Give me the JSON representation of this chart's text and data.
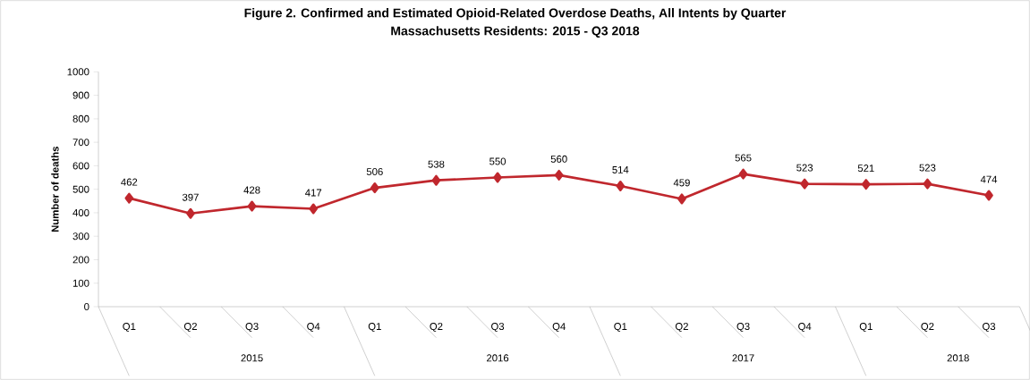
{
  "chart_data": {
    "type": "line",
    "title": "Figure 2. Confirmed and Estimated Opioid-Related Overdose Deaths, All Intents by Quarter",
    "subtitle": "Massachusetts Residents: 2015 - Q3 2018",
    "ylabel": "Number of deaths",
    "categories": [
      "Q1",
      "Q2",
      "Q3",
      "Q4",
      "Q1",
      "Q2",
      "Q3",
      "Q4",
      "Q1",
      "Q2",
      "Q3",
      "Q4",
      "Q1",
      "Q2",
      "Q3"
    ],
    "values": [
      462,
      397,
      428,
      417,
      506,
      538,
      550,
      560,
      514,
      459,
      565,
      523,
      521,
      523,
      474
    ],
    "color": "#c0272d",
    "marker": "diamond",
    "data_labels": true,
    "grid": false,
    "ylim": [
      0,
      1000
    ],
    "yticks": [
      0,
      100,
      200,
      300,
      400,
      500,
      600,
      700,
      800,
      900,
      1000
    ],
    "annotations": [
      "2015",
      "2016",
      "2017",
      "2018"
    ]
  }
}
